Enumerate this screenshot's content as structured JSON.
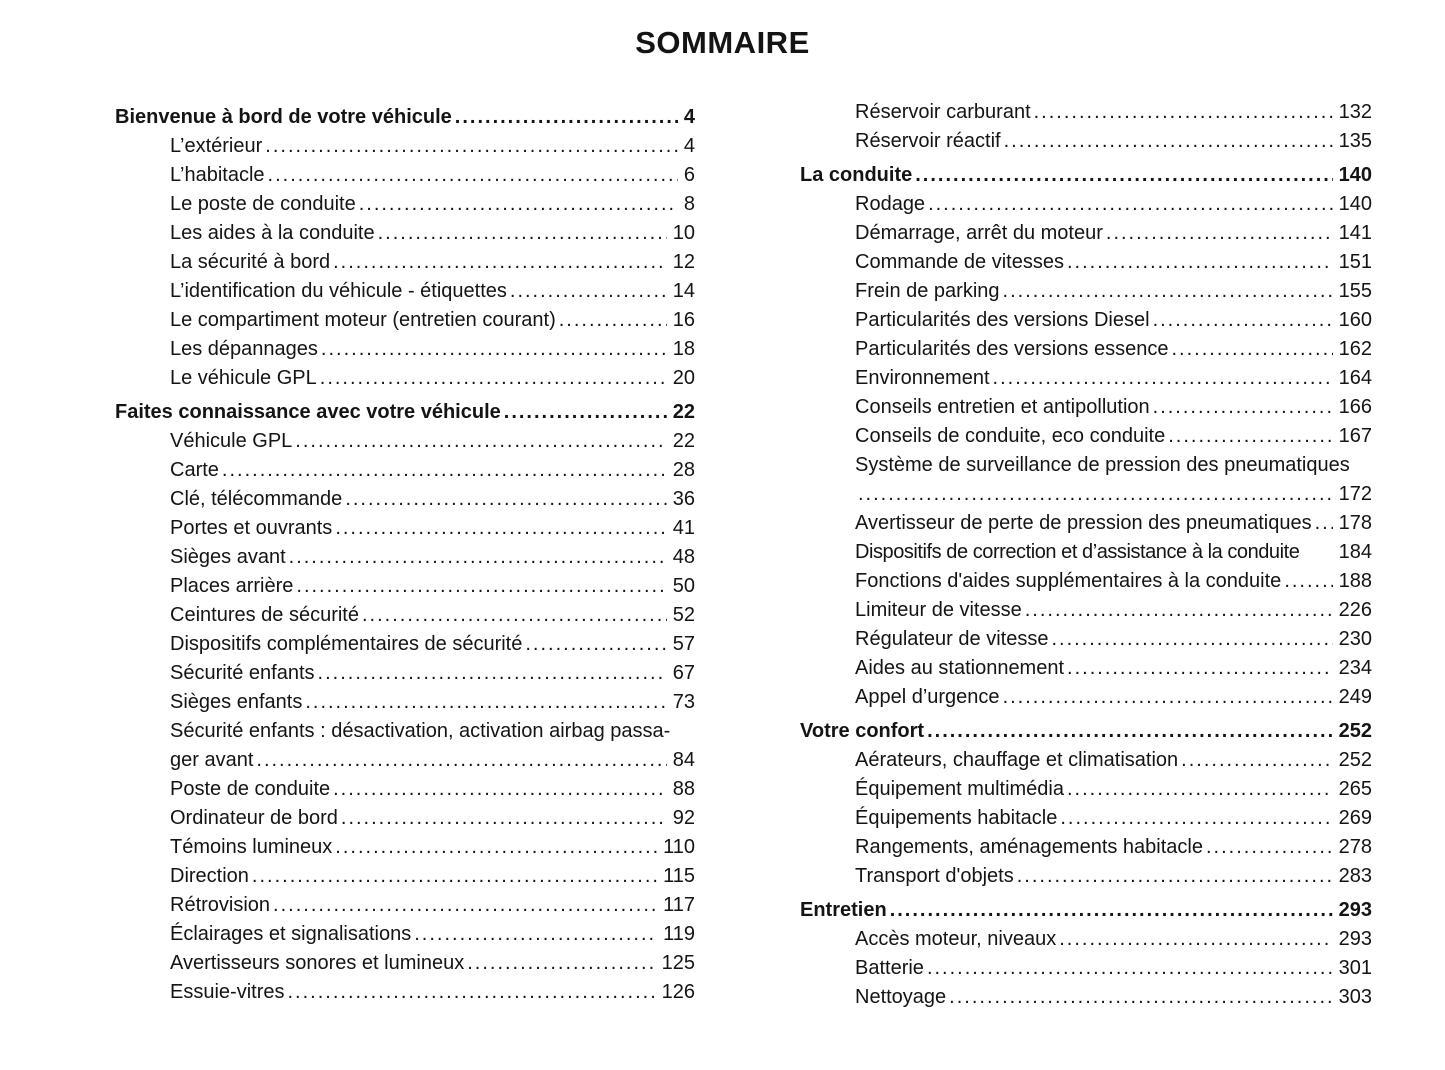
{
  "title": "SOMMAIRE",
  "columns": [
    {
      "entries": [
        {
          "label": "Bienvenue à bord de votre véhicule",
          "page": "4",
          "bold": true,
          "space_before": true
        },
        {
          "label": "L’extérieur",
          "page": "4",
          "indent": true
        },
        {
          "label": "L’habitacle",
          "page": "6",
          "indent": true
        },
        {
          "label": "Le poste de conduite",
          "page": "8",
          "indent": true
        },
        {
          "label": "Les aides à la conduite",
          "page": "10",
          "indent": true
        },
        {
          "label": "La sécurité à bord",
          "page": "12",
          "indent": true
        },
        {
          "label": "L’identification du véhicule - étiquettes",
          "page": "14",
          "indent": true
        },
        {
          "label": "Le compartiment moteur (entretien courant)",
          "page": "16",
          "indent": true
        },
        {
          "label": "Les dépannages",
          "page": "18",
          "indent": true
        },
        {
          "label": "Le véhicule GPL",
          "page": "20",
          "indent": true
        },
        {
          "label": "Faites connaissance avec votre véhicule",
          "page": "22",
          "bold": true,
          "space_before": true
        },
        {
          "label": "Véhicule GPL",
          "page": "22",
          "indent": true
        },
        {
          "label": "Carte",
          "page": "28",
          "indent": true
        },
        {
          "label": "Clé, télécommande",
          "page": "36",
          "indent": true
        },
        {
          "label": "Portes et ouvrants",
          "page": "41",
          "indent": true
        },
        {
          "label": "Sièges avant",
          "page": "48",
          "indent": true
        },
        {
          "label": "Places arrière",
          "page": "50",
          "indent": true
        },
        {
          "label": "Ceintures de sécurité",
          "page": "52",
          "indent": true
        },
        {
          "label": "Dispositifs complémentaires de sécurité",
          "page": "57",
          "indent": true
        },
        {
          "label": "Sécurité enfants",
          "page": "67",
          "indent": true
        },
        {
          "label": "Sièges enfants",
          "page": "73",
          "indent": true
        },
        {
          "label": "Sécurité enfants : désactivation, activation airbag passa-",
          "label2": "ger avant",
          "page": "84",
          "indent": true
        },
        {
          "label": "Poste de conduite",
          "page": "88",
          "indent": true
        },
        {
          "label": "Ordinateur de bord",
          "page": "92",
          "indent": true
        },
        {
          "label": "Témoins lumineux",
          "page": "110",
          "indent": true
        },
        {
          "label": "Direction",
          "page": "115",
          "indent": true
        },
        {
          "label": "Rétrovision",
          "page": "117",
          "indent": true
        },
        {
          "label": "Éclairages et signalisations",
          "page": "119",
          "indent": true
        },
        {
          "label": "Avertisseurs sonores et lumineux",
          "page": "125",
          "indent": true
        },
        {
          "label": "Essuie-vitres",
          "page": "126",
          "indent": true
        }
      ]
    },
    {
      "entries": [
        {
          "label": "Réservoir carburant",
          "page": "132",
          "indent": true
        },
        {
          "label": "Réservoir réactif",
          "page": "135",
          "indent": true
        },
        {
          "label": "La conduite",
          "page": "140",
          "bold": true,
          "space_before": true
        },
        {
          "label": "Rodage",
          "page": "140",
          "indent": true
        },
        {
          "label": "Démarrage, arrêt du moteur",
          "page": "141",
          "indent": true
        },
        {
          "label": "Commande de vitesses",
          "page": "151",
          "indent": true
        },
        {
          "label": "Frein de parking",
          "page": "155",
          "indent": true
        },
        {
          "label": "Particularités des versions Diesel",
          "page": "160",
          "indent": true
        },
        {
          "label": "Particularités des versions essence",
          "page": "162",
          "indent": true
        },
        {
          "label": "Environnement",
          "page": "164",
          "indent": true
        },
        {
          "label": "Conseils entretien et antipollution",
          "page": "166",
          "indent": true
        },
        {
          "label": "Conseils de conduite, eco conduite",
          "page": "167",
          "indent": true
        },
        {
          "label": "Système de surveillance de pression des pneumatiques",
          "label2": "",
          "page": "172",
          "indent": true
        },
        {
          "label": "Avertisseur de perte de pression des pneumatiques",
          "page": "178",
          "indent": true
        },
        {
          "label": "Dispositifs de correction et d’assistance à la conduite",
          "page": "184",
          "indent": true,
          "dots": false,
          "tight": true
        },
        {
          "label": "Fonctions d'aides supplémentaires à la conduite",
          "page": "188",
          "indent": true
        },
        {
          "label": "Limiteur de vitesse",
          "page": "226",
          "indent": true
        },
        {
          "label": "Régulateur de vitesse",
          "page": "230",
          "indent": true
        },
        {
          "label": "Aides au stationnement",
          "page": "234",
          "indent": true
        },
        {
          "label": "Appel d’urgence",
          "page": "249",
          "indent": true
        },
        {
          "label": "Votre confort",
          "page": "252",
          "bold": true,
          "space_before": true
        },
        {
          "label": "Aérateurs, chauffage et climatisation",
          "page": "252",
          "indent": true
        },
        {
          "label": "Équipement multimédia",
          "page": "265",
          "indent": true
        },
        {
          "label": "Équipements habitacle",
          "page": "269",
          "indent": true
        },
        {
          "label": "Rangements, aménagements habitacle",
          "page": "278",
          "indent": true
        },
        {
          "label": "Transport d'objets",
          "page": "283",
          "indent": true
        },
        {
          "label": "Entretien",
          "page": "293",
          "bold": true,
          "space_before": true
        },
        {
          "label": "Accès moteur, niveaux",
          "page": "293",
          "indent": true
        },
        {
          "label": "Batterie",
          "page": "301",
          "indent": true
        },
        {
          "label": "Nettoyage",
          "page": "303",
          "indent": true
        }
      ]
    }
  ]
}
